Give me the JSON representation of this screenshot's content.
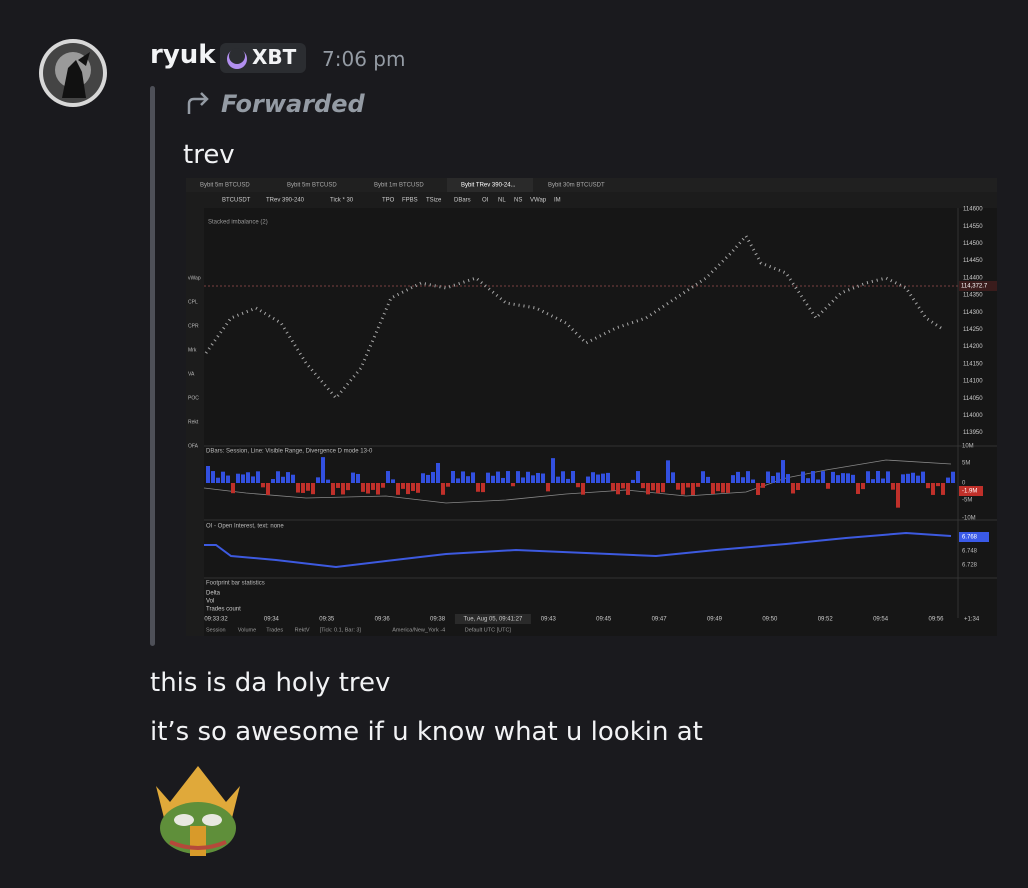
{
  "message": {
    "author": "ryuk",
    "tag": "XBT",
    "time": "7:06 pm",
    "forwarded_label": "Forwarded",
    "forwarded_text": "trev",
    "lines": [
      "this is da holy trev",
      "it’s so awesome if u know what u lookin at"
    ]
  },
  "screenshot": {
    "tabs": [
      "Bybit 5m BTCUSD",
      "Bybit 5m BTCUSD",
      "Bybit 1m BTCUSD",
      "Bybit TRev 390-24...",
      "Bybit 30m BTCUSDT"
    ],
    "toolbar": [
      "BTCUSDT",
      "TRev 390-240",
      "Tick * 30",
      "TPO",
      "FPBS",
      "TSize",
      "DBars",
      "OI",
      "NL",
      "NS",
      "VWap",
      "IM"
    ],
    "sidebar": [
      "vWap",
      "CPL",
      "CPR",
      "Mrk",
      "VA",
      "POC",
      "Rekt",
      "OFA"
    ],
    "pane_title": "Stacked imbalance (2)",
    "price_labels": [
      "114600",
      "114550",
      "114500",
      "114450",
      "114400",
      "114350",
      "114300",
      "114250",
      "114200",
      "114150",
      "114100",
      "114050",
      "114000",
      "113950"
    ],
    "current_price": "114,372.7",
    "dbars_title": "DBars: Session, Line: Visible Range, Divergence D mode 13-0",
    "dbars_labels": [
      "10M",
      "5M",
      "0",
      "-1.9M",
      "-5M",
      "-10M"
    ],
    "oi_title": "OI - Open Interest, text: none",
    "oi_labels": [
      "6.768",
      "6.748",
      "6.728"
    ],
    "footprint_title": "Footprint bar statistics",
    "footprint_rows": [
      "Delta",
      "Vol",
      "Trades count"
    ],
    "time_labels": [
      "09:33:32",
      "09:34",
      "09:35",
      "09:36",
      "09:38",
      "Tue, Aug 05, 09:41:27",
      "09:43",
      "09:45",
      "09:47",
      "09:49",
      "09:50",
      "09:52",
      "09:54",
      "09:56"
    ],
    "time_extra": "+1:34",
    "bottom_bar": [
      "Session",
      "Volume",
      "Trades",
      "RektV",
      "[Tick: 0.1, Bar: 3]",
      "America/New_York -4",
      "Default UTC [UTC]"
    ]
  }
}
